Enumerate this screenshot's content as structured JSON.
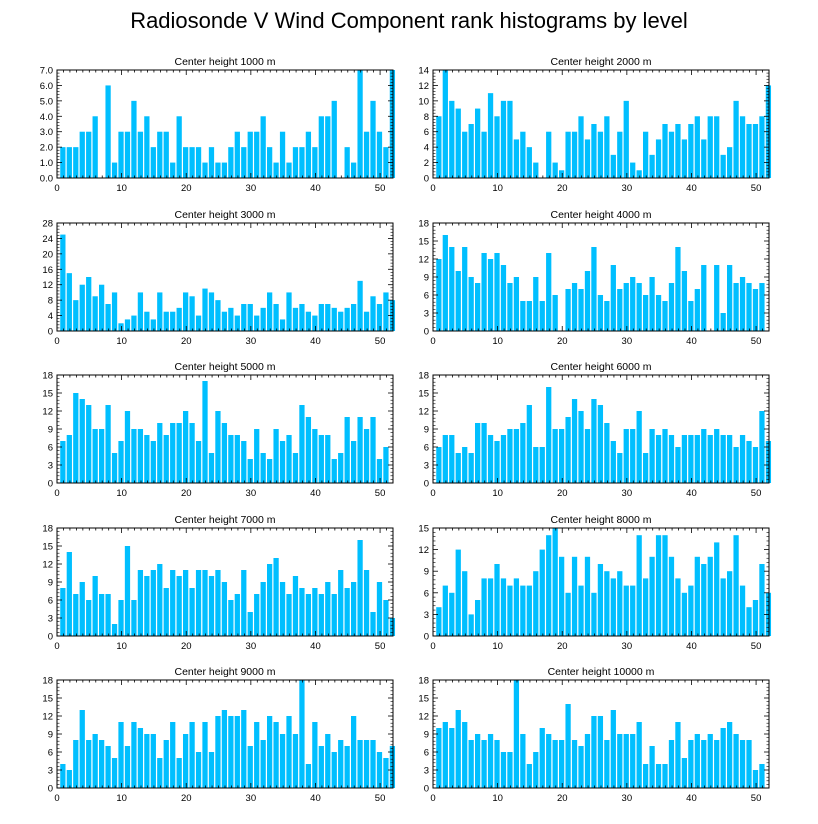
{
  "title": "Radiosonde V Wind Component rank histograms by level",
  "bar_color": "#00bfff",
  "chart_data": [
    {
      "type": "bar",
      "title": "Center height 1000 m",
      "x": [
        0,
        1,
        2,
        3,
        4,
        5,
        6,
        7,
        8,
        9,
        10,
        11,
        12,
        13,
        14,
        15,
        16,
        17,
        18,
        19,
        20,
        21,
        22,
        23,
        24,
        25,
        26,
        27,
        28,
        29,
        30,
        31,
        32,
        33,
        34,
        35,
        36,
        37,
        38,
        39,
        40,
        41,
        42,
        43,
        44,
        45,
        46,
        47,
        48,
        49,
        50,
        51
      ],
      "values": [
        2,
        2,
        2,
        3,
        3,
        4,
        0,
        6,
        1,
        3,
        3,
        5,
        3,
        4,
        2,
        3,
        3,
        1,
        4,
        2,
        2,
        2,
        1,
        2,
        1,
        1,
        2,
        3,
        2,
        3,
        3,
        4,
        2,
        1,
        3,
        1,
        2,
        2,
        3,
        2,
        4,
        4,
        5,
        0,
        2,
        1,
        7,
        3,
        5,
        3,
        2,
        7
      ],
      "xlim": [
        0,
        52
      ],
      "ylim": [
        0,
        7
      ],
      "yticks": [
        0,
        1,
        2,
        3,
        4,
        5,
        6,
        7
      ],
      "ytick_labels": [
        "0.0",
        "1.0",
        "2.0",
        "3.0",
        "4.0",
        "5.0",
        "6.0",
        "7.0"
      ],
      "xticks": [
        0,
        10,
        20,
        30,
        40,
        50
      ],
      "xtick_labels": [
        "0",
        "10",
        "20",
        "30",
        "40",
        "50"
      ]
    },
    {
      "type": "bar",
      "title": "Center height 2000 m",
      "x": [
        0,
        1,
        2,
        3,
        4,
        5,
        6,
        7,
        8,
        9,
        10,
        11,
        12,
        13,
        14,
        15,
        16,
        17,
        18,
        19,
        20,
        21,
        22,
        23,
        24,
        25,
        26,
        27,
        28,
        29,
        30,
        31,
        32,
        33,
        34,
        35,
        36,
        37,
        38,
        39,
        40,
        41,
        42,
        43,
        44,
        45,
        46,
        47,
        48,
        49,
        50,
        51
      ],
      "values": [
        8,
        14,
        10,
        9,
        6,
        7,
        9,
        6,
        11,
        8,
        10,
        10,
        5,
        6,
        4,
        2,
        0,
        6,
        2,
        1,
        6,
        6,
        8,
        5,
        7,
        6,
        8,
        3,
        6,
        10,
        2,
        1,
        6,
        3,
        5,
        7,
        6,
        7,
        5,
        7,
        8,
        5,
        8,
        8,
        3,
        4,
        10,
        8,
        7,
        7,
        8,
        12
      ],
      "xlim": [
        0,
        52
      ],
      "ylim": [
        0,
        14
      ],
      "yticks": [
        0,
        2,
        4,
        6,
        8,
        10,
        12,
        14
      ],
      "ytick_labels": [
        "0",
        "2",
        "4",
        "6",
        "8",
        "10",
        "12",
        "14"
      ],
      "xticks": [
        0,
        10,
        20,
        30,
        40,
        50
      ],
      "xtick_labels": [
        "0",
        "10",
        "20",
        "30",
        "40",
        "50"
      ]
    },
    {
      "type": "bar",
      "title": "Center height 3000 m",
      "x": [
        0,
        1,
        2,
        3,
        4,
        5,
        6,
        7,
        8,
        9,
        10,
        11,
        12,
        13,
        14,
        15,
        16,
        17,
        18,
        19,
        20,
        21,
        22,
        23,
        24,
        25,
        26,
        27,
        28,
        29,
        30,
        31,
        32,
        33,
        34,
        35,
        36,
        37,
        38,
        39,
        40,
        41,
        42,
        43,
        44,
        45,
        46,
        47,
        48,
        49,
        50,
        51
      ],
      "values": [
        25,
        15,
        8,
        12,
        14,
        9,
        12,
        7,
        10,
        2,
        3,
        4,
        10,
        5,
        3,
        10,
        5,
        5,
        6,
        10,
        9,
        4,
        11,
        10,
        8,
        5,
        6,
        4,
        7,
        7,
        4,
        6,
        10,
        7,
        3,
        10,
        6,
        7,
        5,
        4,
        7,
        7,
        6,
        5,
        6,
        7,
        13,
        5,
        9,
        7,
        10,
        8
      ],
      "xlim": [
        0,
        52
      ],
      "ylim": [
        0,
        28
      ],
      "yticks": [
        0,
        4,
        8,
        12,
        16,
        20,
        24,
        28
      ],
      "ytick_labels": [
        "0",
        "4",
        "8",
        "12",
        "16",
        "20",
        "24",
        "28"
      ],
      "xticks": [
        0,
        10,
        20,
        30,
        40,
        50
      ],
      "xtick_labels": [
        "0",
        "10",
        "20",
        "30",
        "40",
        "50"
      ]
    },
    {
      "type": "bar",
      "title": "Center height 4000 m",
      "x": [
        0,
        1,
        2,
        3,
        4,
        5,
        6,
        7,
        8,
        9,
        10,
        11,
        12,
        13,
        14,
        15,
        16,
        17,
        18,
        19,
        20,
        21,
        22,
        23,
        24,
        25,
        26,
        27,
        28,
        29,
        30,
        31,
        32,
        33,
        34,
        35,
        36,
        37,
        38,
        39,
        40,
        41,
        42,
        43,
        44,
        45,
        46,
        47,
        48,
        49,
        50,
        51
      ],
      "values": [
        12,
        16,
        14,
        10,
        14,
        9,
        8,
        13,
        12,
        13,
        11,
        8,
        9,
        5,
        5,
        9,
        5,
        13,
        6,
        0,
        7,
        8,
        7,
        10,
        14,
        6,
        5,
        11,
        7,
        8,
        9,
        8,
        6,
        9,
        6,
        5,
        8,
        14,
        10,
        5,
        7,
        11,
        0,
        11,
        3,
        11,
        8,
        9,
        8,
        7,
        8,
        0
      ],
      "xlim": [
        0,
        52
      ],
      "ylim": [
        0,
        18
      ],
      "yticks": [
        0,
        3,
        6,
        9,
        12,
        15,
        18
      ],
      "ytick_labels": [
        "0",
        "3",
        "6",
        "9",
        "12",
        "15",
        "18"
      ],
      "xticks": [
        0,
        10,
        20,
        30,
        40,
        50
      ],
      "xtick_labels": [
        "0",
        "10",
        "20",
        "30",
        "40",
        "50"
      ]
    },
    {
      "type": "bar",
      "title": "Center height 5000 m",
      "x": [
        0,
        1,
        2,
        3,
        4,
        5,
        6,
        7,
        8,
        9,
        10,
        11,
        12,
        13,
        14,
        15,
        16,
        17,
        18,
        19,
        20,
        21,
        22,
        23,
        24,
        25,
        26,
        27,
        28,
        29,
        30,
        31,
        32,
        33,
        34,
        35,
        36,
        37,
        38,
        39,
        40,
        41,
        42,
        43,
        44,
        45,
        46,
        47,
        48,
        49,
        50,
        51
      ],
      "values": [
        7,
        8,
        15,
        14,
        13,
        9,
        9,
        13,
        5,
        7,
        12,
        9,
        9,
        8,
        7,
        10,
        8,
        10,
        10,
        12,
        10,
        7,
        17,
        5,
        12,
        10,
        8,
        8,
        7,
        4,
        9,
        5,
        4,
        9,
        7,
        8,
        5,
        13,
        11,
        9,
        8,
        8,
        4,
        5,
        11,
        7,
        11,
        9,
        11,
        4,
        6,
        0
      ],
      "xlim": [
        0,
        52
      ],
      "ylim": [
        0,
        18
      ],
      "yticks": [
        0,
        3,
        6,
        9,
        12,
        15,
        18
      ],
      "ytick_labels": [
        "0",
        "3",
        "6",
        "9",
        "12",
        "15",
        "18"
      ],
      "xticks": [
        0,
        10,
        20,
        30,
        40,
        50
      ],
      "xtick_labels": [
        "0",
        "10",
        "20",
        "30",
        "40",
        "50"
      ]
    },
    {
      "type": "bar",
      "title": "Center height 6000 m",
      "x": [
        0,
        1,
        2,
        3,
        4,
        5,
        6,
        7,
        8,
        9,
        10,
        11,
        12,
        13,
        14,
        15,
        16,
        17,
        18,
        19,
        20,
        21,
        22,
        23,
        24,
        25,
        26,
        27,
        28,
        29,
        30,
        31,
        32,
        33,
        34,
        35,
        36,
        37,
        38,
        39,
        40,
        41,
        42,
        43,
        44,
        45,
        46,
        47,
        48,
        49,
        50,
        51
      ],
      "values": [
        6,
        8,
        8,
        5,
        6,
        5,
        10,
        10,
        8,
        7,
        8,
        9,
        9,
        10,
        13,
        6,
        6,
        16,
        9,
        9,
        11,
        14,
        12,
        9,
        14,
        13,
        10,
        7,
        5,
        9,
        9,
        12,
        5,
        9,
        8,
        9,
        8,
        6,
        8,
        8,
        8,
        9,
        8,
        9,
        8,
        8,
        6,
        8,
        7,
        6,
        12,
        7
      ],
      "xlim": [
        0,
        52
      ],
      "ylim": [
        0,
        18
      ],
      "yticks": [
        0,
        3,
        6,
        9,
        12,
        15,
        18
      ],
      "ytick_labels": [
        "0",
        "3",
        "6",
        "9",
        "12",
        "15",
        "18"
      ],
      "xticks": [
        0,
        10,
        20,
        30,
        40,
        50
      ],
      "xtick_labels": [
        "0",
        "10",
        "20",
        "30",
        "40",
        "50"
      ]
    },
    {
      "type": "bar",
      "title": "Center height 7000 m",
      "x": [
        0,
        1,
        2,
        3,
        4,
        5,
        6,
        7,
        8,
        9,
        10,
        11,
        12,
        13,
        14,
        15,
        16,
        17,
        18,
        19,
        20,
        21,
        22,
        23,
        24,
        25,
        26,
        27,
        28,
        29,
        30,
        31,
        32,
        33,
        34,
        35,
        36,
        37,
        38,
        39,
        40,
        41,
        42,
        43,
        44,
        45,
        46,
        47,
        48,
        49,
        50,
        51
      ],
      "values": [
        8,
        14,
        7,
        9,
        6,
        10,
        7,
        7,
        2,
        6,
        15,
        6,
        11,
        10,
        11,
        12,
        8,
        11,
        10,
        11,
        8,
        11,
        11,
        10,
        11,
        9,
        6,
        7,
        11,
        4,
        7,
        9,
        12,
        13,
        9,
        7,
        10,
        8,
        7,
        8,
        7,
        9,
        7,
        11,
        8,
        9,
        16,
        11,
        4,
        9,
        6,
        3
      ],
      "xlim": [
        0,
        52
      ],
      "ylim": [
        0,
        18
      ],
      "yticks": [
        0,
        3,
        6,
        9,
        12,
        15,
        18
      ],
      "ytick_labels": [
        "0",
        "3",
        "6",
        "9",
        "12",
        "15",
        "18"
      ],
      "xticks": [
        0,
        10,
        20,
        30,
        40,
        50
      ],
      "xtick_labels": [
        "0",
        "10",
        "20",
        "30",
        "40",
        "50"
      ]
    },
    {
      "type": "bar",
      "title": "Center height 8000 m",
      "x": [
        0,
        1,
        2,
        3,
        4,
        5,
        6,
        7,
        8,
        9,
        10,
        11,
        12,
        13,
        14,
        15,
        16,
        17,
        18,
        19,
        20,
        21,
        22,
        23,
        24,
        25,
        26,
        27,
        28,
        29,
        30,
        31,
        32,
        33,
        34,
        35,
        36,
        37,
        38,
        39,
        40,
        41,
        42,
        43,
        44,
        45,
        46,
        47,
        48,
        49,
        50,
        51
      ],
      "values": [
        4,
        7,
        6,
        12,
        9,
        3,
        5,
        8,
        8,
        10,
        8,
        7,
        8,
        7,
        7,
        9,
        12,
        14,
        15,
        11,
        6,
        11,
        7,
        11,
        6,
        10,
        9,
        8,
        9,
        7,
        7,
        14,
        8,
        11,
        14,
        14,
        11,
        8,
        6,
        7,
        11,
        10,
        11,
        13,
        8,
        9,
        14,
        7,
        4,
        5,
        10,
        6
      ],
      "xlim": [
        0,
        52
      ],
      "ylim": [
        0,
        15
      ],
      "yticks": [
        0,
        3,
        6,
        9,
        12,
        15
      ],
      "ytick_labels": [
        "0",
        "3",
        "6",
        "9",
        "12",
        "15"
      ],
      "xticks": [
        0,
        10,
        20,
        30,
        40,
        50
      ],
      "xtick_labels": [
        "0",
        "10",
        "20",
        "30",
        "40",
        "50"
      ]
    },
    {
      "type": "bar",
      "title": "Center height 9000 m",
      "x": [
        0,
        1,
        2,
        3,
        4,
        5,
        6,
        7,
        8,
        9,
        10,
        11,
        12,
        13,
        14,
        15,
        16,
        17,
        18,
        19,
        20,
        21,
        22,
        23,
        24,
        25,
        26,
        27,
        28,
        29,
        30,
        31,
        32,
        33,
        34,
        35,
        36,
        37,
        38,
        39,
        40,
        41,
        42,
        43,
        44,
        45,
        46,
        47,
        48,
        49,
        50,
        51
      ],
      "values": [
        4,
        3,
        8,
        13,
        8,
        9,
        8,
        7,
        5,
        11,
        7,
        11,
        10,
        9,
        9,
        5,
        8,
        11,
        5,
        9,
        11,
        6,
        11,
        6,
        12,
        13,
        12,
        12,
        13,
        7,
        11,
        8,
        12,
        11,
        9,
        12,
        9,
        18,
        4,
        11,
        7,
        9,
        6,
        8,
        7,
        12,
        8,
        8,
        8,
        6,
        5,
        7
      ],
      "xlim": [
        0,
        52
      ],
      "ylim": [
        0,
        18
      ],
      "yticks": [
        0,
        3,
        6,
        9,
        12,
        15,
        18
      ],
      "ytick_labels": [
        "0",
        "3",
        "6",
        "9",
        "12",
        "15",
        "18"
      ],
      "xticks": [
        0,
        10,
        20,
        30,
        40,
        50
      ],
      "xtick_labels": [
        "0",
        "10",
        "20",
        "30",
        "40",
        "50"
      ]
    },
    {
      "type": "bar",
      "title": "Center height 10000 m",
      "x": [
        0,
        1,
        2,
        3,
        4,
        5,
        6,
        7,
        8,
        9,
        10,
        11,
        12,
        13,
        14,
        15,
        16,
        17,
        18,
        19,
        20,
        21,
        22,
        23,
        24,
        25,
        26,
        27,
        28,
        29,
        30,
        31,
        32,
        33,
        34,
        35,
        36,
        37,
        38,
        39,
        40,
        41,
        42,
        43,
        44,
        45,
        46,
        47,
        48,
        49,
        50,
        51
      ],
      "values": [
        10,
        11,
        10,
        13,
        11,
        8,
        9,
        8,
        9,
        8,
        6,
        6,
        18,
        9,
        4,
        6,
        10,
        9,
        8,
        8,
        14,
        8,
        7,
        9,
        12,
        12,
        8,
        13,
        9,
        9,
        9,
        11,
        4,
        7,
        4,
        4,
        8,
        11,
        5,
        8,
        9,
        8,
        9,
        8,
        10,
        11,
        9,
        8,
        8,
        3,
        4,
        0
      ],
      "xlim": [
        0,
        52
      ],
      "ylim": [
        0,
        18
      ],
      "yticks": [
        0,
        3,
        6,
        9,
        12,
        15,
        18
      ],
      "ytick_labels": [
        "0",
        "3",
        "6",
        "9",
        "12",
        "15",
        "18"
      ],
      "xticks": [
        0,
        10,
        20,
        30,
        40,
        50
      ],
      "xtick_labels": [
        "0",
        "10",
        "20",
        "30",
        "40",
        "50"
      ]
    }
  ]
}
